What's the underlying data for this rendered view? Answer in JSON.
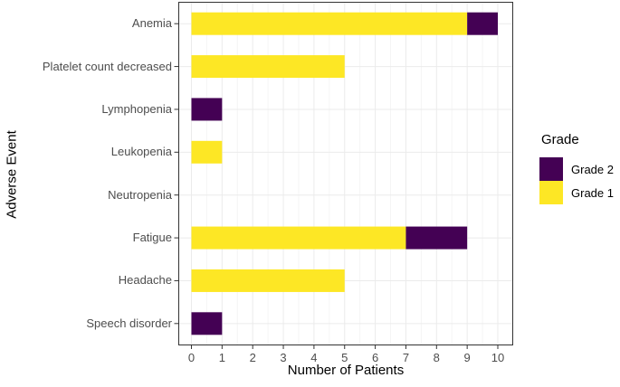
{
  "chart_data": {
    "type": "bar",
    "orientation": "horizontal",
    "stacked": true,
    "title": "",
    "xlabel": "Number of Patients",
    "ylabel": "Adverse Event",
    "categories": [
      "Anemia",
      "Platelet count decreased",
      "Lymphopenia",
      "Leukopenia",
      "Neutropenia",
      "Fatigue",
      "Headache",
      "Speech disorder"
    ],
    "series": [
      {
        "name": "Grade 1",
        "color": "#FDE725",
        "values": [
          9,
          5,
          0,
          1,
          0,
          7,
          5,
          0
        ]
      },
      {
        "name": "Grade 2",
        "color": "#440154",
        "values": [
          1,
          0,
          1,
          0,
          0,
          2,
          0,
          1
        ]
      }
    ],
    "xlim": [
      0,
      10
    ],
    "x_ticks": [
      0,
      1,
      2,
      3,
      4,
      5,
      6,
      7,
      8,
      9,
      10
    ],
    "grid": "major and minor vertical, major horizontal at category centers",
    "legend": {
      "title": "Grade",
      "position": "right",
      "entries": [
        "Grade 2",
        "Grade 1"
      ]
    }
  },
  "colors": {
    "background": "#FFFFFF",
    "panel_border": "#333333",
    "grid_major": "#EBEBEB",
    "grid_minor": "#F5F5F5",
    "axis_tick": "#333333",
    "tick_label": "#4D4D4D",
    "title_text": "#000000"
  }
}
